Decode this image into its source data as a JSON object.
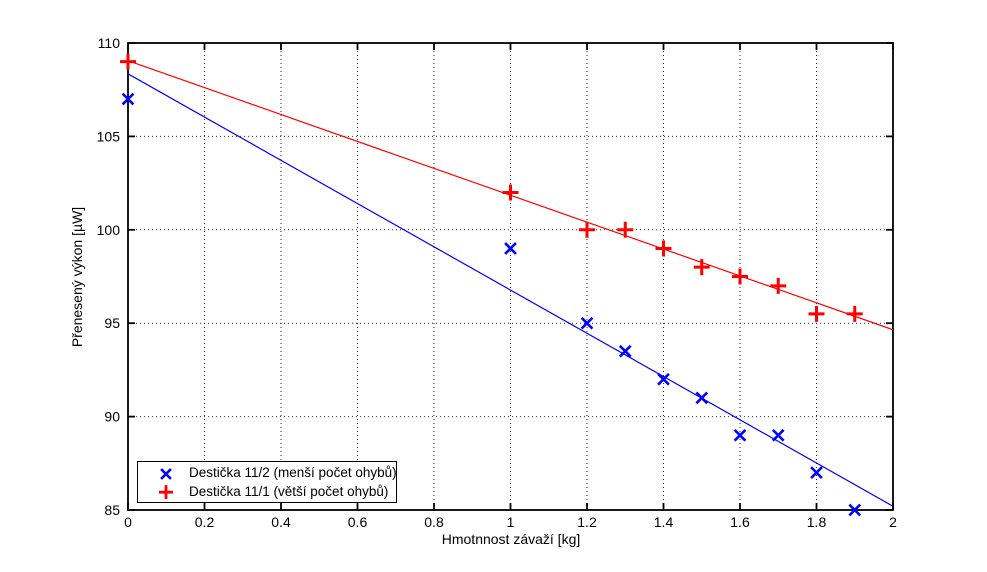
{
  "figure": {
    "background": "#ffffff",
    "axis_color": "#000000",
    "grid_color": "#2a2a2a"
  },
  "chart_data": {
    "type": "scatter",
    "title": "",
    "xlabel": "Hmotnnost závaží [kg]",
    "ylabel": "Přenesený výkon [µW]",
    "xlim": [
      0,
      2
    ],
    "ylim": [
      85,
      110
    ],
    "x_ticks": [
      0,
      0.2,
      0.4,
      0.6,
      0.8,
      1,
      1.2,
      1.4,
      1.6,
      1.8,
      2
    ],
    "x_tick_labels": [
      "0",
      "0.2",
      "0.4",
      "0.6",
      "0.8",
      "1",
      "1.2",
      "1.4",
      "1.6",
      "1.8",
      "2"
    ],
    "y_ticks": [
      85,
      90,
      95,
      100,
      105,
      110
    ],
    "y_tick_labels": [
      "85",
      "90",
      "95",
      "100",
      "105",
      "110"
    ],
    "grid": true,
    "grid_style": "dotted",
    "legend_position": "bottom-left",
    "series": [
      {
        "name": "Destička 11/2 (menší počet ohybů)",
        "marker": "x",
        "color": "#0000ff",
        "points": [
          [
            0,
            107
          ],
          [
            1.0,
            99
          ],
          [
            1.2,
            95
          ],
          [
            1.3,
            93.5
          ],
          [
            1.4,
            92
          ],
          [
            1.5,
            91
          ],
          [
            1.6,
            89
          ],
          [
            1.7,
            89
          ],
          [
            1.8,
            87
          ],
          [
            1.9,
            85
          ]
        ],
        "fit_line": {
          "from": [
            0,
            108.35
          ],
          "to": [
            2,
            85.2
          ]
        }
      },
      {
        "name": "Destička 11/1 (větší počet ohybů)",
        "marker": "+",
        "color": "#ff0000",
        "points": [
          [
            0,
            109
          ],
          [
            1.0,
            102
          ],
          [
            1.2,
            100
          ],
          [
            1.3,
            100
          ],
          [
            1.4,
            99
          ],
          [
            1.5,
            98
          ],
          [
            1.6,
            97.5
          ],
          [
            1.7,
            97
          ],
          [
            1.8,
            95.5
          ],
          [
            1.9,
            95.5
          ]
        ],
        "fit_line": {
          "from": [
            0,
            109.05
          ],
          "to": [
            2,
            94.65
          ]
        }
      }
    ]
  }
}
